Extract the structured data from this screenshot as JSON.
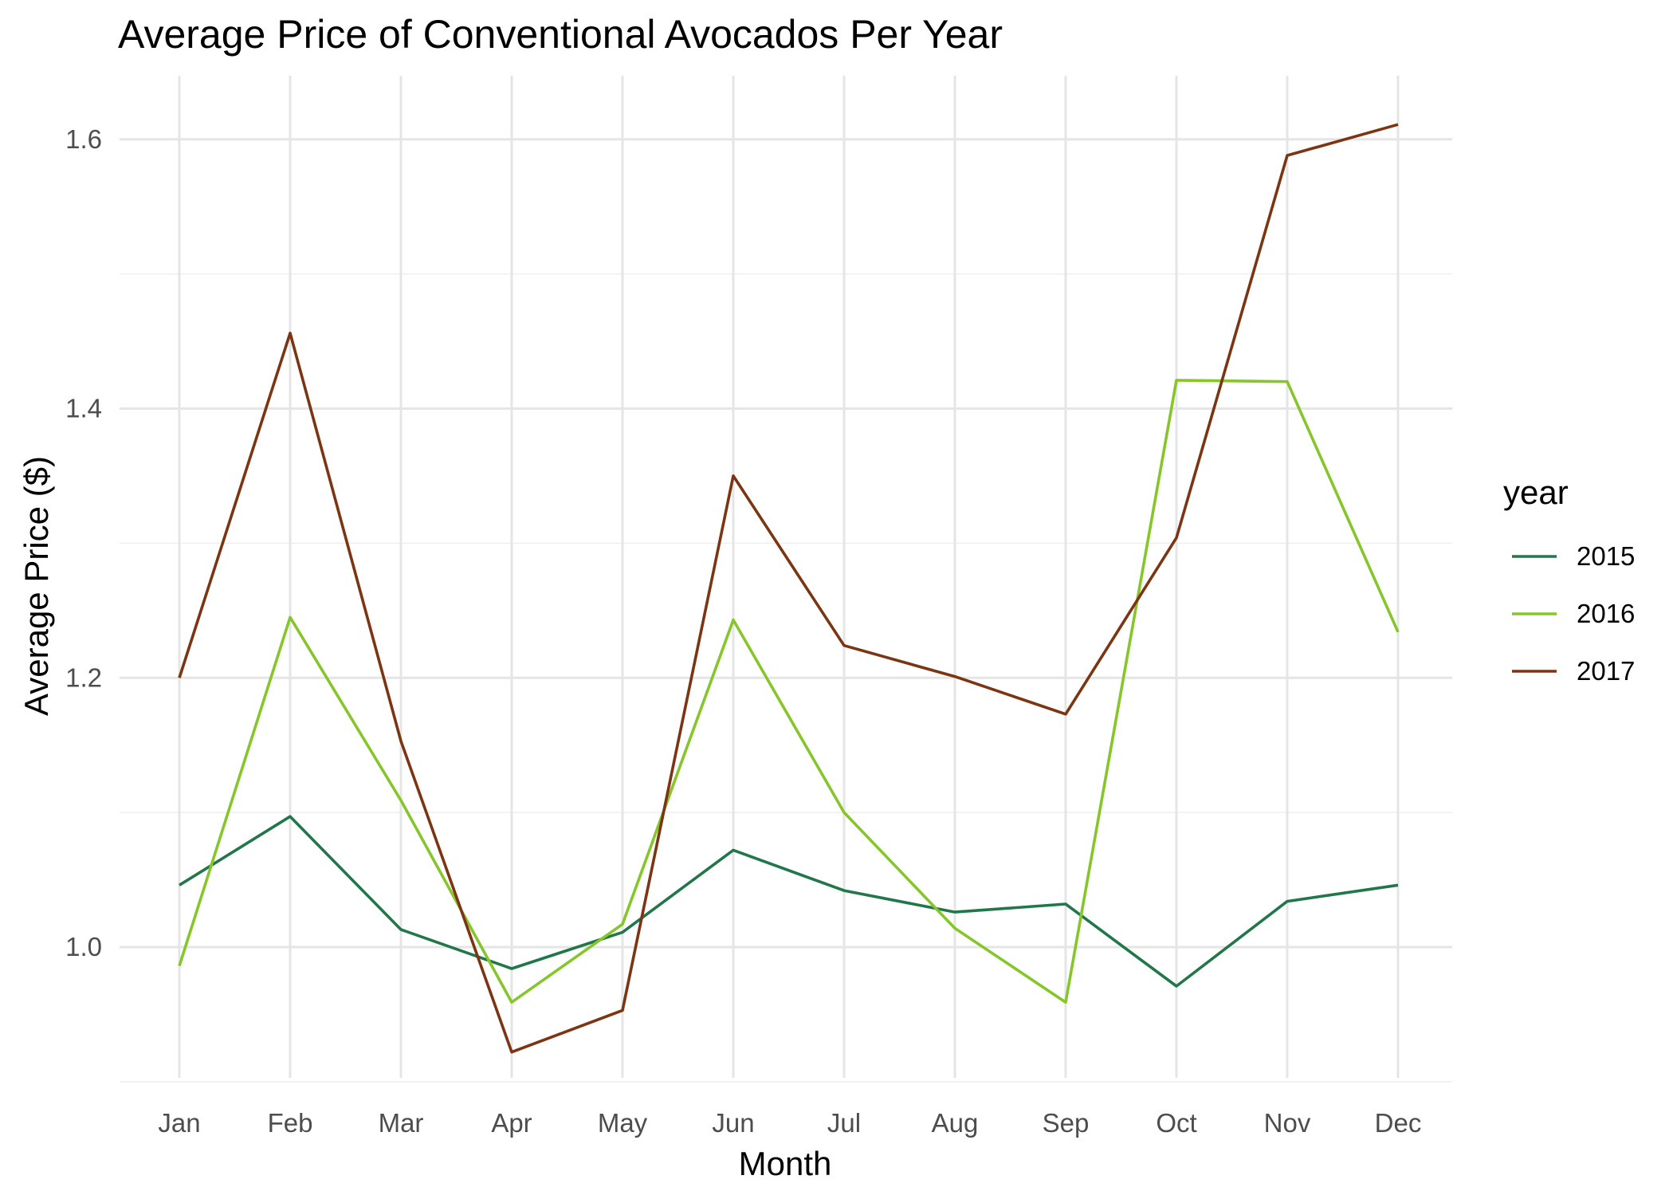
{
  "chart_data": {
    "type": "line",
    "title": "Average Price of Conventional Avocados Per Year",
    "xlabel": "Month",
    "ylabel": "Average Price ($)",
    "categories": [
      "Jan",
      "Feb",
      "Mar",
      "Apr",
      "May",
      "Jun",
      "Jul",
      "Aug",
      "Sep",
      "Oct",
      "Nov",
      "Dec"
    ],
    "ylim": [
      0.9,
      1.65
    ],
    "yticks": [
      1.0,
      1.2,
      1.4,
      1.6
    ],
    "ytick_labels": [
      "1.0",
      "1.2",
      "1.4",
      "1.6"
    ],
    "grid": true,
    "legend": {
      "title": "year",
      "position": "right"
    },
    "series": [
      {
        "name": "2015",
        "color": "#22774a",
        "values": [
          1.046,
          1.097,
          1.013,
          0.984,
          1.011,
          1.072,
          1.042,
          1.026,
          1.032,
          0.971,
          1.034,
          1.046
        ]
      },
      {
        "name": "2016",
        "color": "#86c62b",
        "values": [
          0.986,
          1.245,
          1.109,
          0.959,
          1.017,
          1.243,
          1.1,
          1.014,
          0.959,
          1.421,
          1.42,
          1.234
        ]
      },
      {
        "name": "2017",
        "color": "#7c3513",
        "values": [
          1.2,
          1.456,
          1.153,
          0.922,
          0.953,
          1.35,
          1.224,
          1.201,
          1.173,
          1.304,
          1.588,
          1.611
        ]
      }
    ]
  }
}
